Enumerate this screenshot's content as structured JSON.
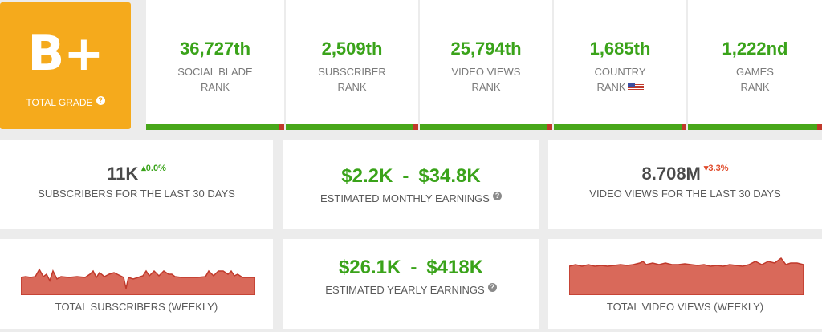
{
  "grade": {
    "value": "B+",
    "label": "TOTAL GRADE",
    "help_icon": "question-circle-icon",
    "color": "#f5aa1c"
  },
  "ranks": [
    {
      "value": "36,727th",
      "line1": "SOCIAL BLADE",
      "line2": "RANK"
    },
    {
      "value": "2,509th",
      "line1": "SUBSCRIBER",
      "line2": "RANK"
    },
    {
      "value": "25,794th",
      "line1": "VIDEO VIEWS",
      "line2": "RANK"
    },
    {
      "value": "1,685th",
      "line1": "COUNTRY",
      "line2": "RANK",
      "flag": "us-flag-icon"
    },
    {
      "value": "1,222nd",
      "line1": "GAMES",
      "line2": "RANK"
    }
  ],
  "subscribers_30d": {
    "value": "11K",
    "delta": "0.0%",
    "delta_direction": "up",
    "label": "SUBSCRIBERS FOR THE LAST 30 DAYS"
  },
  "monthly_earnings": {
    "low": "$2.2K",
    "separator": "-",
    "high": "$34.8K",
    "label": "ESTIMATED MONTHLY EARNINGS"
  },
  "views_30d": {
    "value": "8.708M",
    "delta": "3.3%",
    "delta_direction": "down",
    "label": "VIDEO VIEWS FOR THE LAST 30 DAYS"
  },
  "yearly_earnings": {
    "low": "$26.1K",
    "separator": "-",
    "high": "$418K",
    "label": "ESTIMATED YEARLY EARNINGS"
  },
  "weekly_subscribers": {
    "label": "TOTAL SUBSCRIBERS (WEEKLY)"
  },
  "weekly_views": {
    "label": "TOTAL VIDEO VIEWS (WEEKLY)"
  },
  "colors": {
    "green": "#3aa31a",
    "red": "#e04b2b",
    "bar_green": "#48a71a",
    "bar_red": "#c0392b",
    "spark_fill": "#d9695a",
    "spark_stroke": "#c0392b"
  }
}
